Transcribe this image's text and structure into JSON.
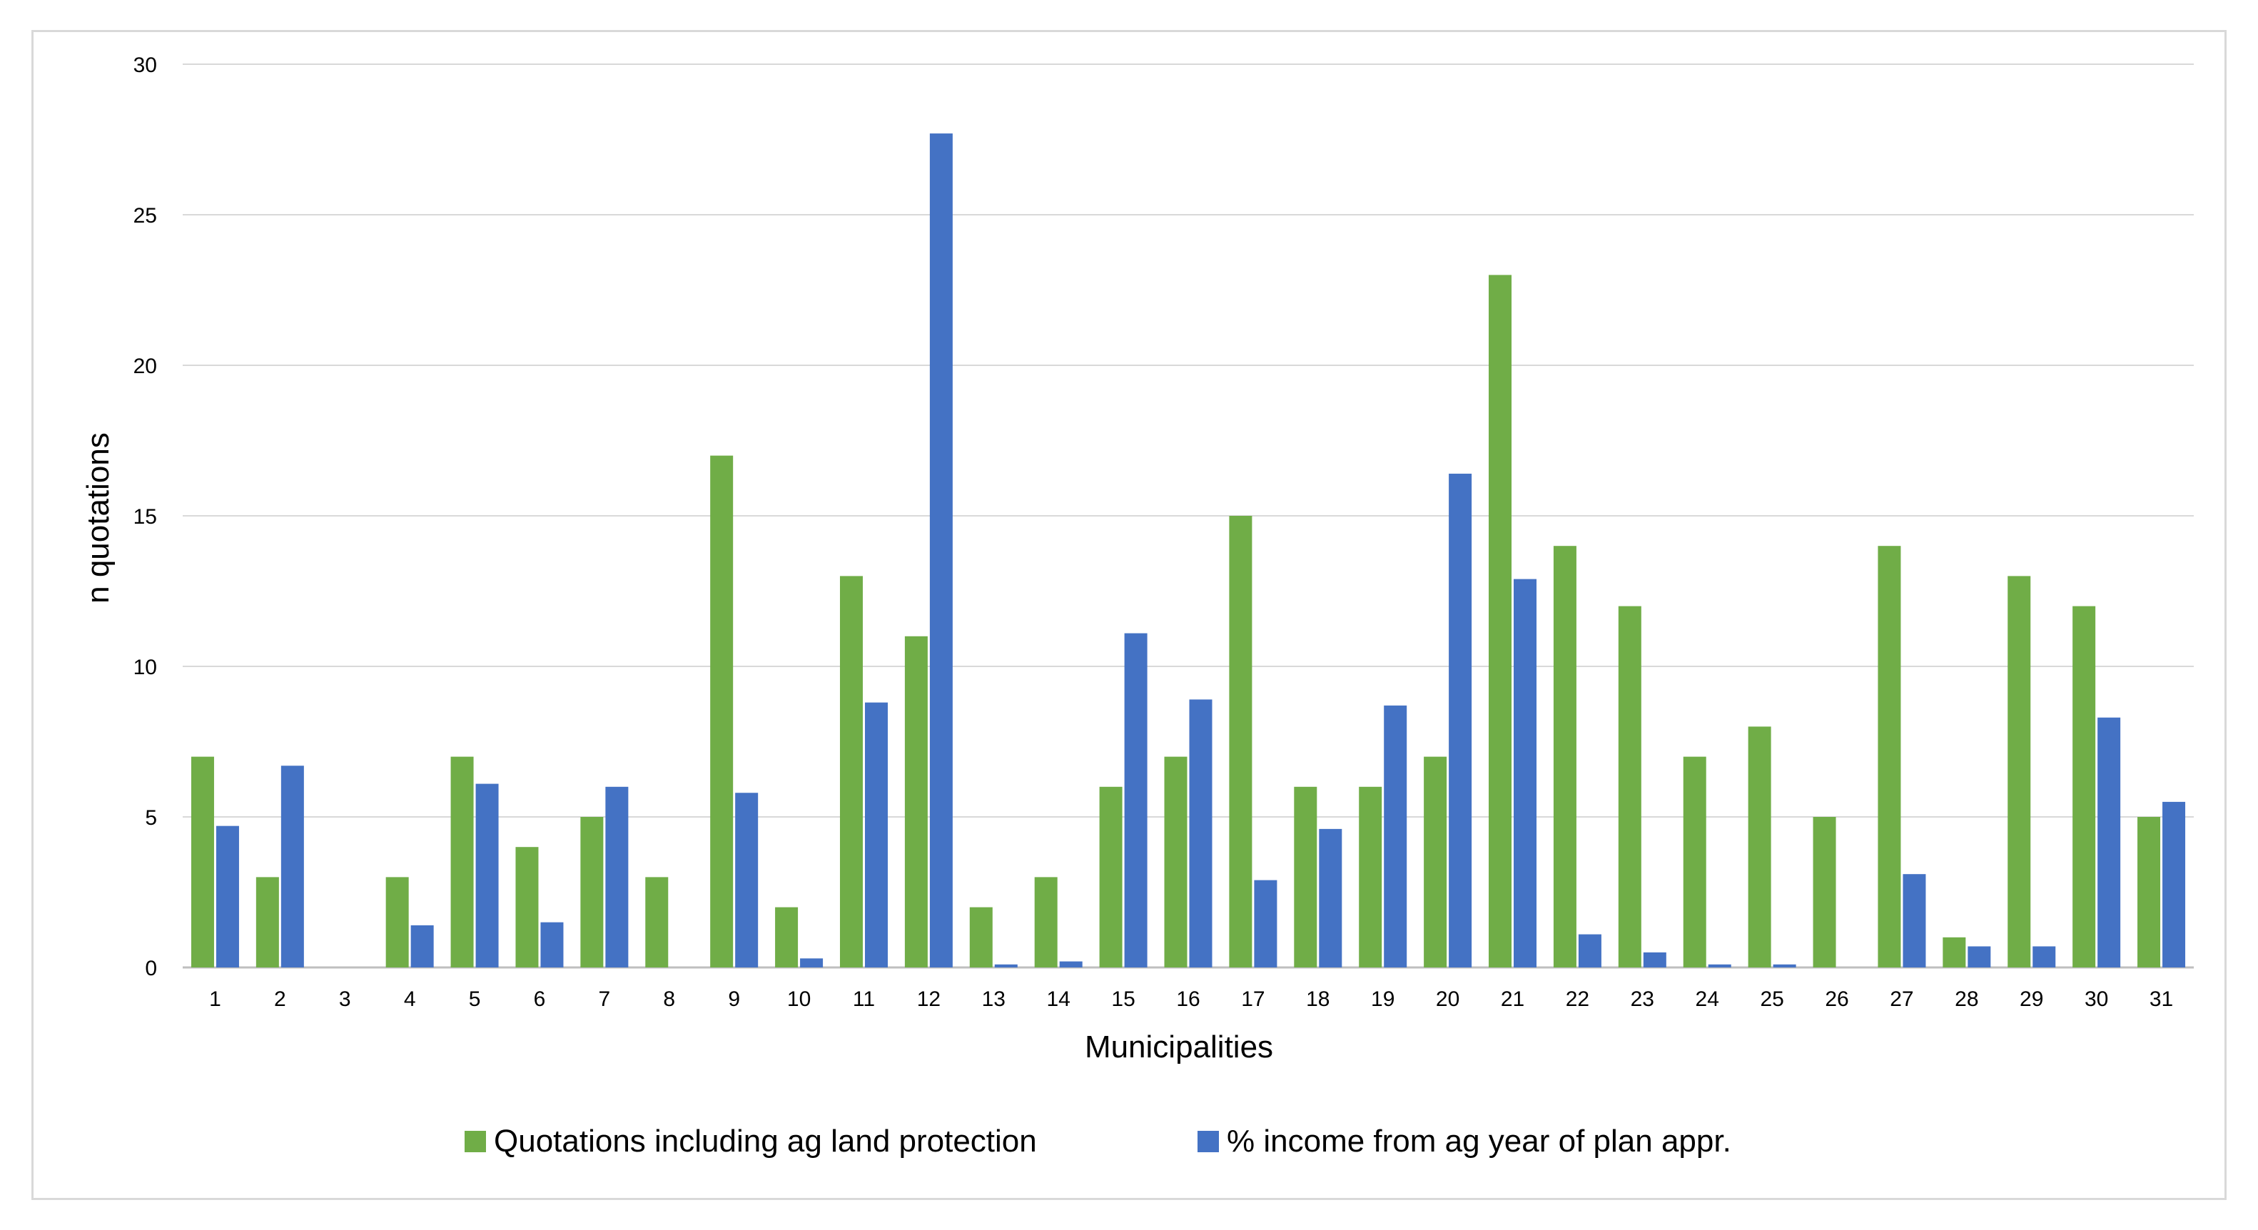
{
  "chart_data": {
    "type": "bar",
    "title": "",
    "xlabel": "Municipalities",
    "ylabel": "n quotations",
    "ylim": [
      0,
      30
    ],
    "yticks": [
      0,
      5,
      10,
      15,
      20,
      25,
      30
    ],
    "grid": true,
    "legend_position": "bottom",
    "categories": [
      "1",
      "2",
      "3",
      "4",
      "5",
      "6",
      "7",
      "8",
      "9",
      "10",
      "11",
      "12",
      "13",
      "14",
      "15",
      "16",
      "17",
      "18",
      "19",
      "20",
      "21",
      "22",
      "23",
      "24",
      "25",
      "26",
      "27",
      "28",
      "29",
      "30",
      "31"
    ],
    "series": [
      {
        "name": "Quotations including ag land protection",
        "color": "#70ad47",
        "values": [
          7,
          3,
          0,
          3,
          7,
          4,
          5,
          3,
          17,
          2,
          13,
          11,
          2,
          3,
          6,
          7,
          15,
          6,
          6,
          7,
          23,
          14,
          12,
          7,
          8,
          5,
          14,
          1,
          13,
          12,
          5
        ]
      },
      {
        "name": "% income from ag year of plan appr.",
        "color": "#4472c4",
        "values": [
          4.7,
          6.7,
          0,
          1.4,
          6.1,
          1.5,
          6.0,
          0,
          5.8,
          0.3,
          8.8,
          27.7,
          0.1,
          0.2,
          11.1,
          8.9,
          2.9,
          4.6,
          8.7,
          16.4,
          12.9,
          1.1,
          0.5,
          0.1,
          0.1,
          0,
          3.1,
          0.7,
          0.7,
          8.3,
          5.5
        ]
      }
    ]
  }
}
